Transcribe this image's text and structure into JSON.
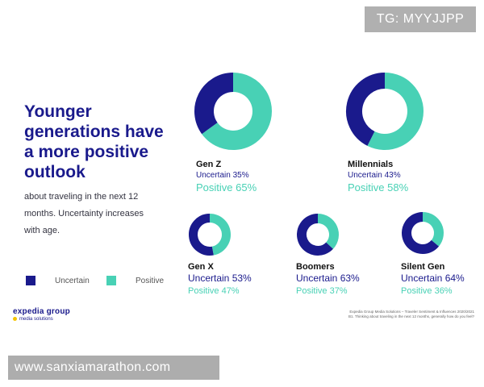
{
  "watermarks": {
    "top_right": "TG: MYYJJPP",
    "bottom_left": "www.sanxiamarathon.com"
  },
  "headline": "Younger generations have a more positive outlook",
  "subtext": "about traveling in the next 12 months. Uncertainty increases with age.",
  "legend": {
    "uncertain": "Uncertain",
    "positive": "Positive"
  },
  "colors": {
    "uncertain": "#1a1a8c",
    "positive": "#48d1b5"
  },
  "chart_data": {
    "type": "pie",
    "subtype": "donut",
    "title": "Younger generations have a more positive outlook",
    "series_names": [
      "Uncertain",
      "Positive"
    ],
    "charts": [
      {
        "name": "Gen Z",
        "uncertain": 35,
        "positive": 65,
        "uncertain_label": "Uncertain 35%",
        "positive_label": "Positive 65%"
      },
      {
        "name": "Millennials",
        "uncertain": 43,
        "positive": 58,
        "uncertain_label": "Uncertain 43%",
        "positive_label": "Positive 58%"
      },
      {
        "name": "Gen X",
        "uncertain": 53,
        "positive": 47,
        "uncertain_label": "Uncertain 53%",
        "positive_label": "Positive 47%"
      },
      {
        "name": "Boomers",
        "uncertain": 63,
        "positive": 37,
        "uncertain_label": "Uncertain 63%",
        "positive_label": "Positive 37%"
      },
      {
        "name": "Silent Gen",
        "uncertain": 64,
        "positive": 36,
        "uncertain_label": "Uncertain 64%",
        "positive_label": "Positive 36%"
      }
    ]
  },
  "footer": {
    "brand": "expedia group",
    "brand_sub": "media solutions",
    "source_line1": "Expedia Group Media Solutions – Traveler Sentiment & Influences 2020/2021",
    "source_line2": "B1. Thinking about traveling in the next 12 months, generally how do you feel?"
  }
}
